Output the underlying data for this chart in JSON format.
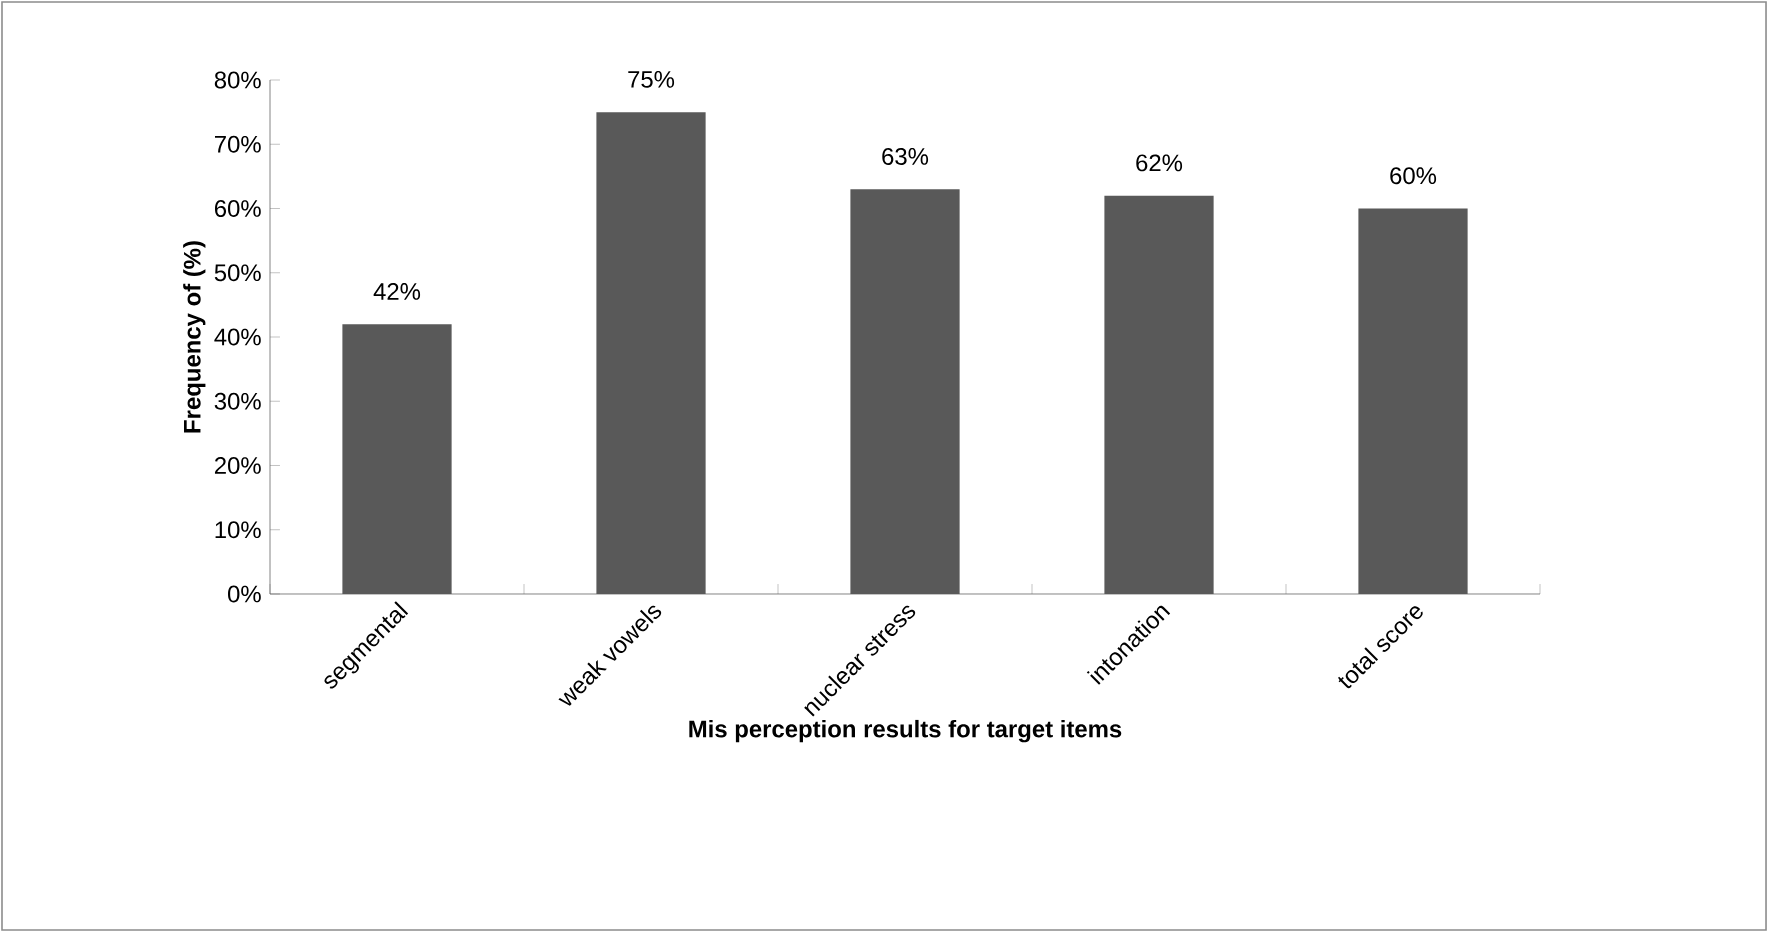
{
  "chart_data": {
    "type": "bar",
    "categories": [
      "segmental",
      "weak vowels",
      "nuclear stress",
      "intonation",
      "total score"
    ],
    "values": [
      42,
      75,
      63,
      62,
      60
    ],
    "value_labels": [
      "42%",
      "75%",
      "63%",
      "62%",
      "60%"
    ],
    "color": "#595959",
    "xlabel": "Mis perception results for target items",
    "ylabel": "Frequency of (%)",
    "ylim": [
      0,
      80
    ],
    "yticks": [
      {
        "value": 0,
        "label": "0%"
      },
      {
        "value": 10,
        "label": "10%"
      },
      {
        "value": 20,
        "label": "20%"
      },
      {
        "value": 30,
        "label": "30%"
      },
      {
        "value": 40,
        "label": "40%"
      },
      {
        "value": 50,
        "label": "50%"
      },
      {
        "value": 60,
        "label": "60%"
      },
      {
        "value": 70,
        "label": "70%"
      },
      {
        "value": 80,
        "label": "80%"
      }
    ],
    "grid": false
  }
}
